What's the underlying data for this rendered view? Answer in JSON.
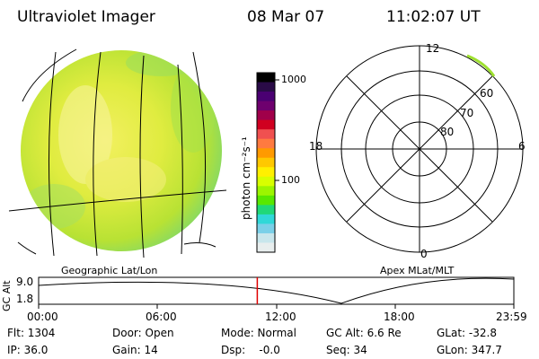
{
  "header": {
    "instrument": "Ultraviolet Imager",
    "date": "08 Mar 07",
    "time": "11:02:07 UT"
  },
  "colorbar": {
    "unit": "photon cm⁻²s⁻¹",
    "tick_high": "1000",
    "tick_mid": "100",
    "colors": [
      "#000000",
      "#2a0b47",
      "#4a0072",
      "#6e006e",
      "#a0004a",
      "#d00020",
      "#f05050",
      "#ff7a40",
      "#ff9a00",
      "#ffc800",
      "#fff000",
      "#d8ff00",
      "#9cf500",
      "#58e800",
      "#20d878",
      "#30d8d8",
      "#7ad0e8",
      "#c8e6ec",
      "#e8eeee"
    ]
  },
  "labels": {
    "geo": "Geographic Lat/Lon",
    "apex": "Apex MLat/MLT"
  },
  "polar": {
    "mlt_top": "12",
    "mlt_left": "18",
    "mlt_right": "6",
    "mlt_bottom": "0",
    "lat60": "60",
    "lat70": "70",
    "lat80": "80"
  },
  "altplot": {
    "ylabel": "GC Alt",
    "y_max": "9.0",
    "y_min": "1.8",
    "ticks": [
      "00:00",
      "06:00",
      "12:00",
      "18:00",
      "23:59"
    ],
    "marker_time": "11:02:07"
  },
  "footer": {
    "flt": "Flt: 1304",
    "ip": "IP: 36.0",
    "door": "Door: Open",
    "gain": "Gain: 14",
    "mode": "Mode: Normal",
    "dsp": "Dsp:    -0.0",
    "gcalt": "GC Alt: 6.6 Re",
    "seq": "Seq: 34",
    "glat": "GLat: -32.8",
    "glon": "GLon: 347.7"
  }
}
